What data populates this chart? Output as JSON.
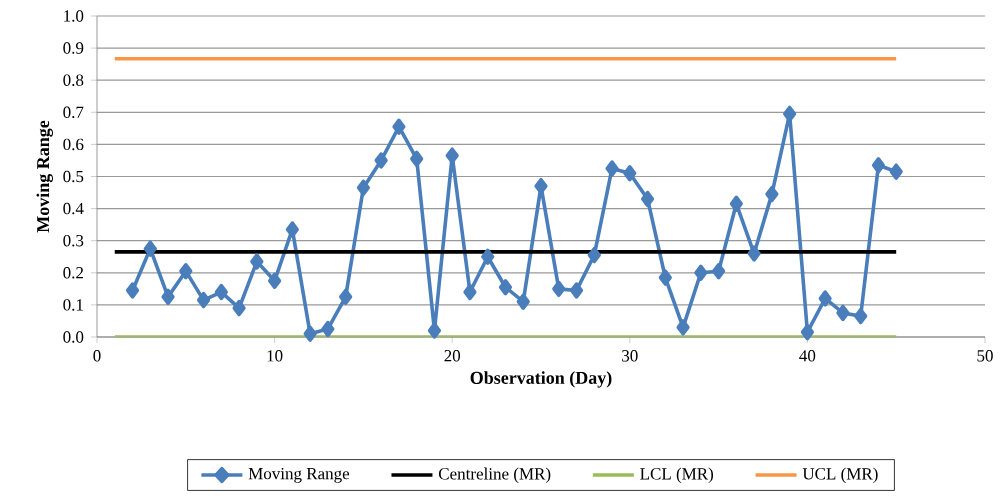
{
  "chart_data": {
    "type": "line",
    "xlabel": "Observation (Day)",
    "ylabel": "Moving Range",
    "xlim": [
      0,
      50
    ],
    "xticks": [
      0,
      10,
      20,
      30,
      40,
      50
    ],
    "ylim": [
      0,
      1.0
    ],
    "yticks": [
      {
        "value": 0,
        "label": "0.0"
      },
      {
        "value": 0.1,
        "label": "0.1"
      },
      {
        "value": 0.2,
        "label": "0.2"
      },
      {
        "value": 0.3,
        "label": "0.3"
      },
      {
        "value": 0.4,
        "label": "0.4"
      },
      {
        "value": 0.5,
        "label": "0.5"
      },
      {
        "value": 0.6,
        "label": "0.6"
      },
      {
        "value": 0.7,
        "label": "0.7"
      },
      {
        "value": 0.8,
        "label": "0.8"
      },
      {
        "value": 0.9,
        "label": "0.9"
      },
      {
        "value": 1.0,
        "label": "1.0"
      }
    ],
    "grid": "y",
    "legend": "bottom",
    "series": [
      {
        "name": "Moving Range",
        "color": "#4a7ebb",
        "marker": "diamond",
        "x": [
          2,
          3,
          4,
          5,
          6,
          7,
          8,
          9,
          10,
          11,
          12,
          13,
          14,
          15,
          16,
          17,
          18,
          19,
          20,
          21,
          22,
          23,
          24,
          25,
          26,
          27,
          28,
          29,
          30,
          31,
          32,
          33,
          34,
          35,
          36,
          37,
          38,
          39,
          40,
          41,
          42,
          43,
          44,
          45
        ],
        "values": [
          0.145,
          0.275,
          0.125,
          0.205,
          0.115,
          0.14,
          0.09,
          0.235,
          0.175,
          0.335,
          0.01,
          0.025,
          0.125,
          0.465,
          0.55,
          0.655,
          0.555,
          0.02,
          0.565,
          0.14,
          0.25,
          0.155,
          0.11,
          0.47,
          0.15,
          0.145,
          0.255,
          0.525,
          0.51,
          0.43,
          0.185,
          0.03,
          0.2,
          0.205,
          0.415,
          0.26,
          0.445,
          0.695,
          0.015,
          0.12,
          0.075,
          0.065,
          0.535,
          0.515
        ]
      },
      {
        "name": "Centreline (MR)",
        "color": "#000000",
        "marker": "none",
        "x": [
          1,
          45
        ],
        "values": [
          0.265,
          0.265
        ]
      },
      {
        "name": "LCL (MR)",
        "color": "#9bbb59",
        "marker": "none",
        "x": [
          1,
          45
        ],
        "values": [
          0,
          0
        ]
      },
      {
        "name": "UCL (MR)",
        "color": "#f79646",
        "marker": "none",
        "x": [
          1,
          45
        ],
        "values": [
          0.867,
          0.867
        ]
      }
    ]
  }
}
